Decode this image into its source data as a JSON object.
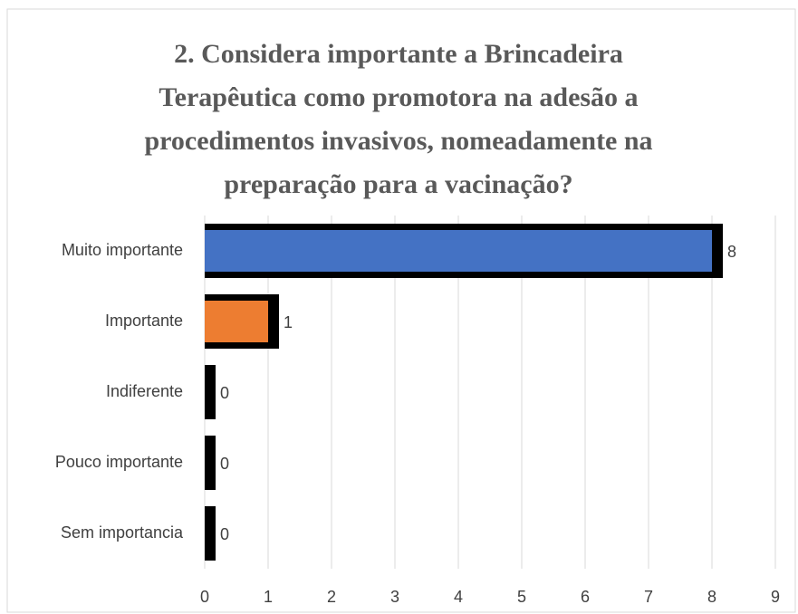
{
  "chart_data": {
    "type": "barh",
    "title": [
      "2. Considera importante a Brincadeira",
      "Terapêutica como promotora na adesão a",
      "procedimentos invasivos, nomeadamente na",
      "preparação para a vacinação?"
    ],
    "categories": [
      "Muito importante",
      "Importante",
      "Indiferente",
      "Pouco importante",
      "Sem importancia"
    ],
    "values": [
      8,
      1,
      0,
      0,
      0
    ],
    "colors": [
      "#4472c4",
      "#ed7d31",
      "#a5a5a5",
      "#ffc000",
      "#5b9bd5"
    ],
    "outline_color": "#000000",
    "xlim": [
      0,
      9
    ],
    "xticks": [
      0,
      1,
      2,
      3,
      4,
      5,
      6,
      7,
      8,
      9
    ],
    "grid": true
  }
}
